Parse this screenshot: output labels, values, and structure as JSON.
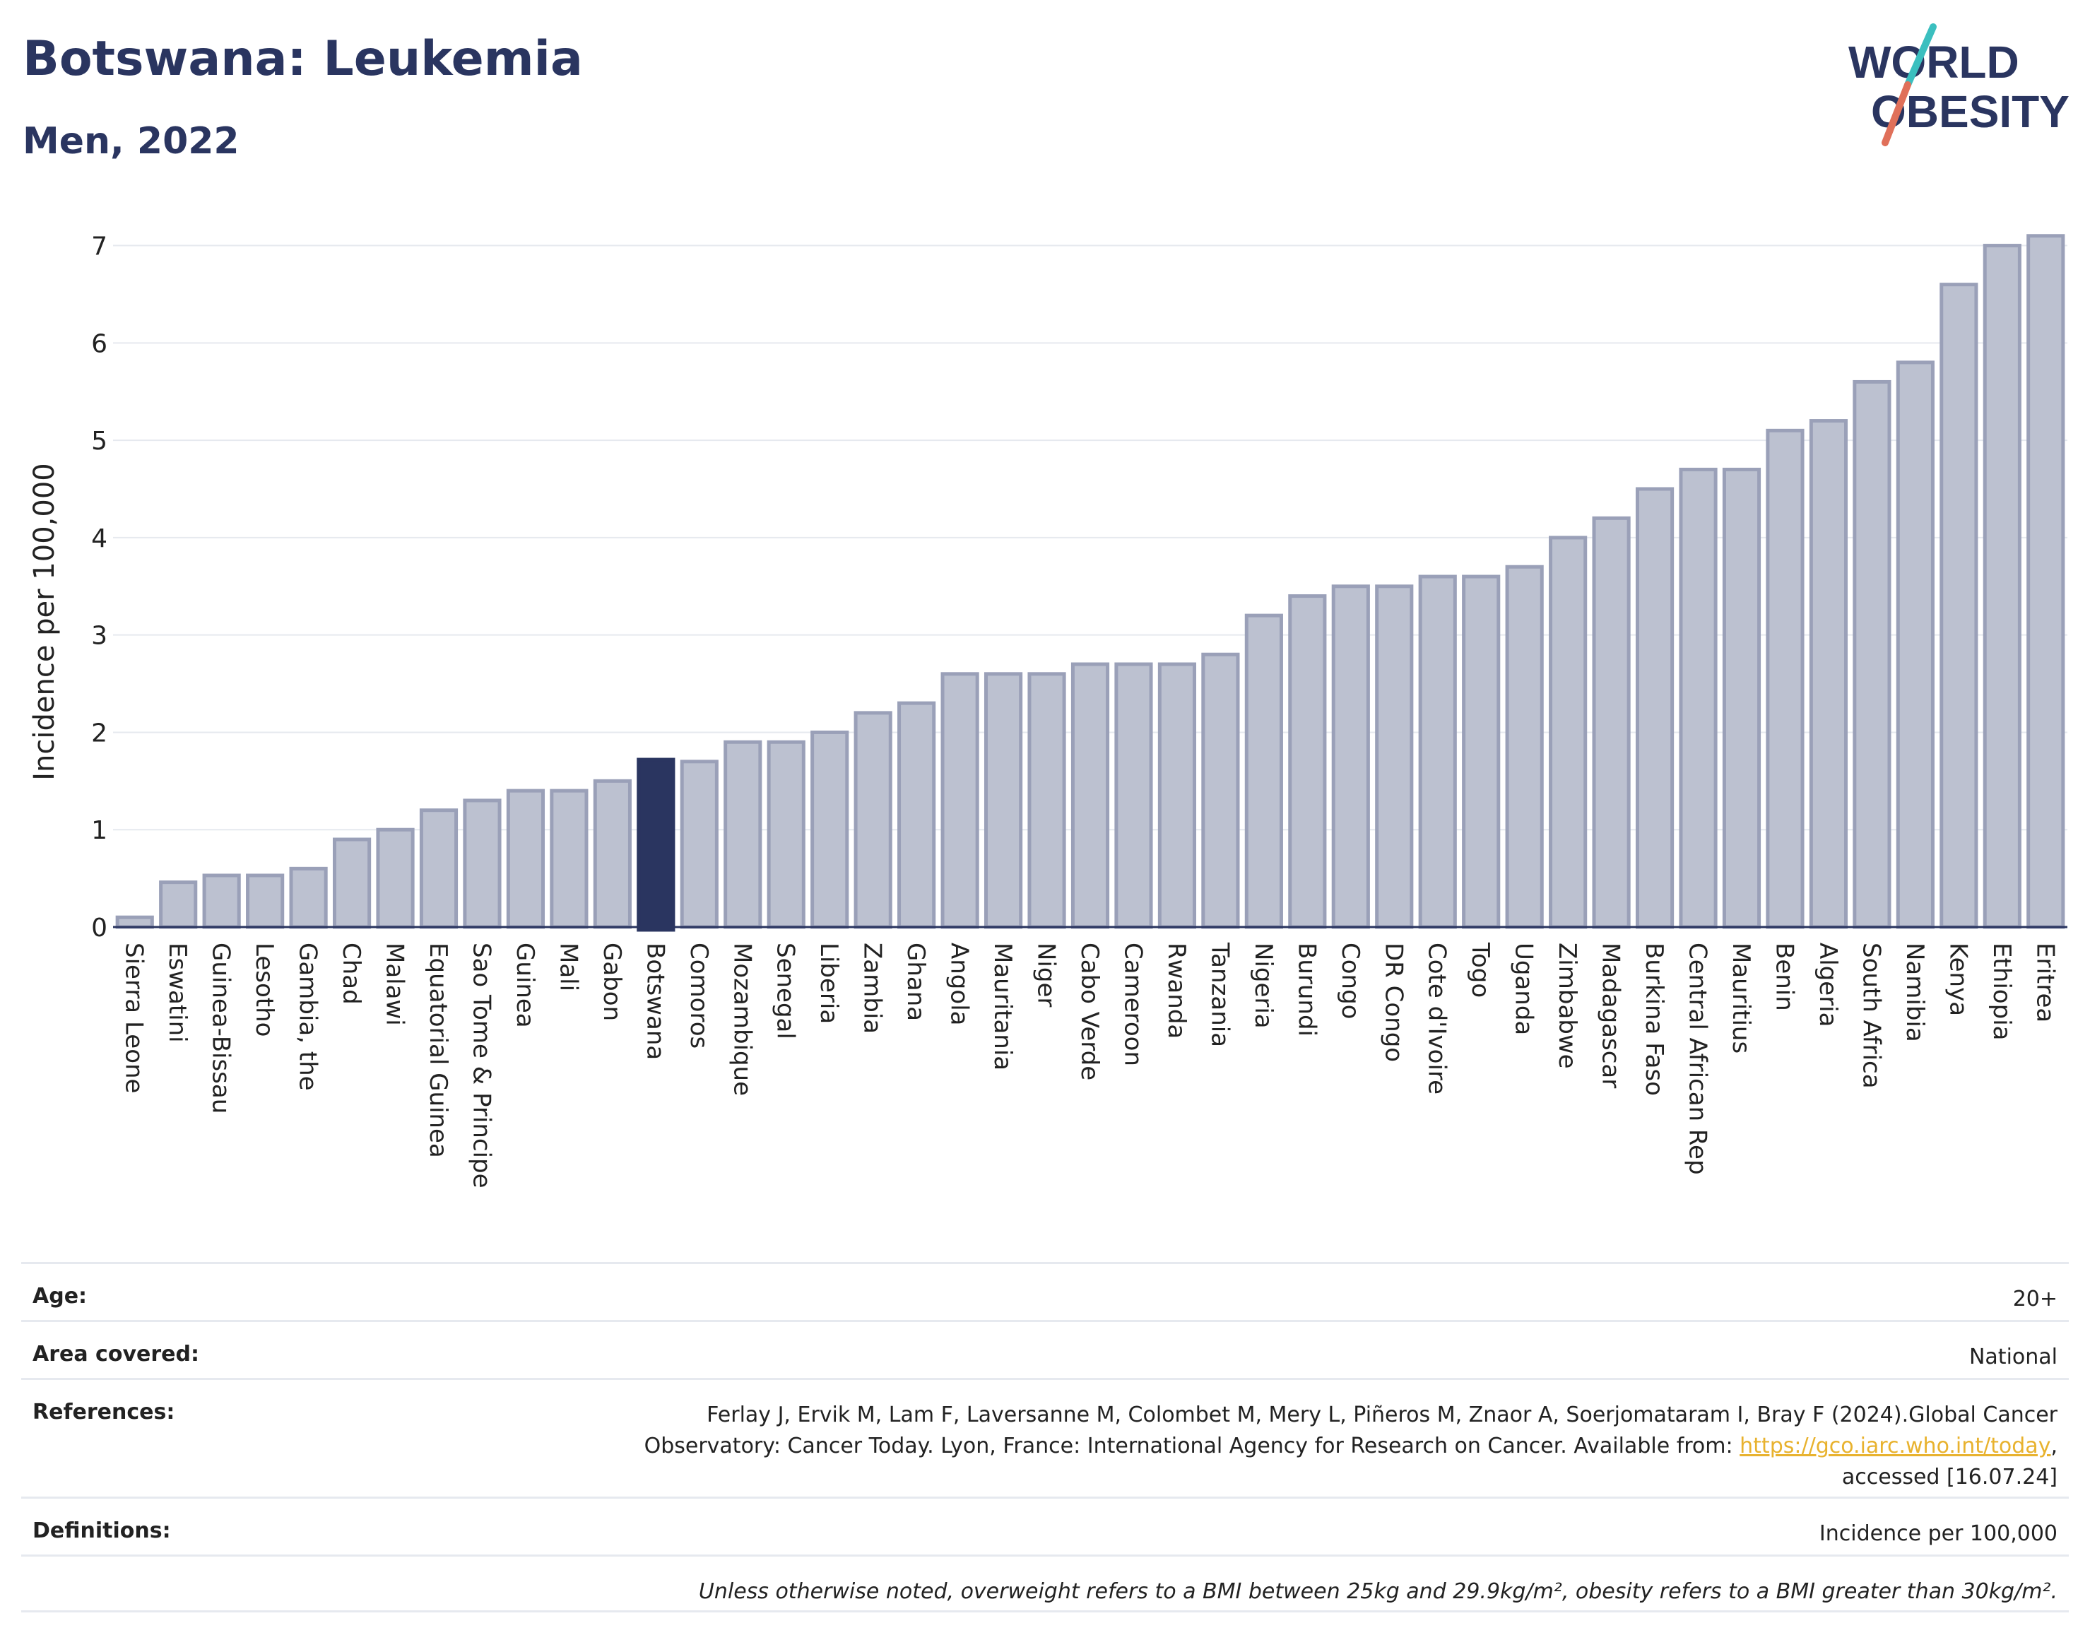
{
  "header": {
    "title": "Botswana: Leukemia",
    "subtitle": "Men, 2022"
  },
  "logo": {
    "line1": "WORLD",
    "line2": "OBESITY",
    "colors": {
      "text": "#2a3560",
      "slash_top": "#3bbfbf",
      "slash_bottom": "#e0705a"
    }
  },
  "chart_data": {
    "type": "bar",
    "ylabel": "Incidence per 100,000",
    "ylim": [
      0,
      7.2
    ],
    "yticks": [
      0,
      1,
      2,
      3,
      4,
      5,
      6,
      7
    ],
    "grid": true,
    "highlight": "Botswana",
    "colors": {
      "bar": "#bcc1d0",
      "bar_edge": "#9aa0b8",
      "highlight": "#2a3560"
    },
    "categories": [
      "Sierra Leone",
      "Eswatini",
      "Guinea-Bissau",
      "Lesotho",
      "Gambia, the",
      "Chad",
      "Malawi",
      "Equatorial Guinea",
      "Sao Tome & Principe",
      "Guinea",
      "Mali",
      "Gabon",
      "Botswana",
      "Comoros",
      "Mozambique",
      "Senegal",
      "Liberia",
      "Zambia",
      "Ghana",
      "Angola",
      "Mauritania",
      "Niger",
      "Cabo Verde",
      "Cameroon",
      "Rwanda",
      "Tanzania",
      "Nigeria",
      "Burundi",
      "Congo",
      "DR Congo",
      "Cote d'Ivoire",
      "Togo",
      "Uganda",
      "Zimbabwe",
      "Madagascar",
      "Burkina Faso",
      "Central African Rep",
      "Mauritius",
      "Benin",
      "Algeria",
      "South Africa",
      "Namibia",
      "Kenya",
      "Ethiopia",
      "Eritrea"
    ],
    "values": [
      0.1,
      0.46,
      0.53,
      0.53,
      0.6,
      0.9,
      1.0,
      1.2,
      1.3,
      1.4,
      1.4,
      1.5,
      1.72,
      1.7,
      1.9,
      1.9,
      2.0,
      2.2,
      2.3,
      2.6,
      2.6,
      2.6,
      2.7,
      2.7,
      2.7,
      2.8,
      3.2,
      3.4,
      3.5,
      3.5,
      3.6,
      3.6,
      3.7,
      4.0,
      4.2,
      4.5,
      4.7,
      4.7,
      5.1,
      5.2,
      5.6,
      5.8,
      6.6,
      7.0,
      7.1
    ]
  },
  "info": {
    "age": {
      "label": "Age:",
      "value": "20+"
    },
    "area": {
      "label": "Area covered:",
      "value": "National"
    },
    "references": {
      "label": "References:",
      "line1": "Ferlay J, Ervik M, Lam F, Laversanne M, Colombet M, Mery L, Piñeros M, Znaor A, Soerjomataram I, Bray F (2024).Global Cancer",
      "line2": "Observatory: Cancer Today. Lyon, France: International Agency for Research on Cancer. Available from: ",
      "link": "https://gco.iarc.who.int/today",
      "line2_end": ",",
      "line3": "accessed [16.07.24]"
    },
    "definitions": {
      "label": "Definitions:",
      "value": "Incidence per 100,000"
    },
    "note": "Unless otherwise noted, overweight refers to a BMI between 25kg and 29.9kg/m², obesity refers to a BMI greater than 30kg/m²."
  }
}
